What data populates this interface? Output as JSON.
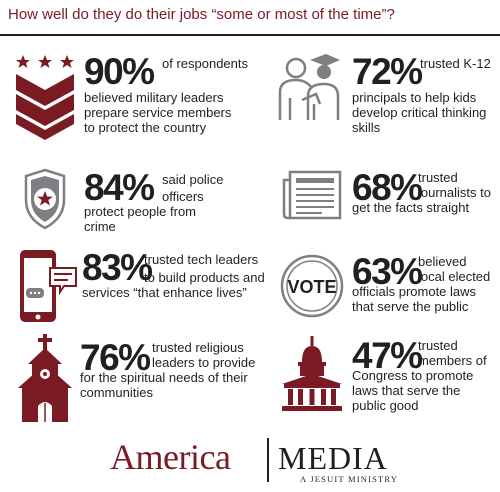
{
  "title": "How well do they do their jobs “some or most of the time”?",
  "stats": [
    {
      "icon": "military-chevron-icon",
      "value": "90%",
      "line1": "of respondents",
      "line2": "believed military leaders prepare service members to protect the country"
    },
    {
      "icon": "teacher-graduate-icon",
      "value": "72%",
      "line1": "trusted K-12",
      "line2": "principals to help kids develop critical thinking skills"
    },
    {
      "icon": "police-badge-icon",
      "value": "84%",
      "line1": "said police",
      "line2": "officers protect people from crime"
    },
    {
      "icon": "newspaper-icon",
      "value": "68%",
      "line1": "trusted",
      "line2": "journalists to get the facts straight"
    },
    {
      "icon": "smartphone-chat-icon",
      "value": "83%",
      "line1": "trusted tech leaders",
      "line2": "to build products and services “that enhance lives”"
    },
    {
      "icon": "vote-button-icon",
      "value": "63%",
      "line1": "believed",
      "line2": "local elected officials promote laws that serve the public"
    },
    {
      "icon": "church-icon",
      "value": "76%",
      "line1": "trusted religious",
      "line2": "leaders to provide for the spiritual needs of their communities"
    },
    {
      "icon": "capitol-building-icon",
      "value": "47%",
      "line1": "trusted",
      "line2": "members of Congress to promote laws that serve the public good"
    }
  ],
  "vote_icon_text": "VOTE",
  "logo": {
    "america": "America",
    "media": "MEDIA",
    "ministry": "A JESUIT MINISTRY"
  },
  "colors": {
    "brand": "#7a1a23",
    "text": "#231f20",
    "icon_gray": "#7d7f82"
  }
}
